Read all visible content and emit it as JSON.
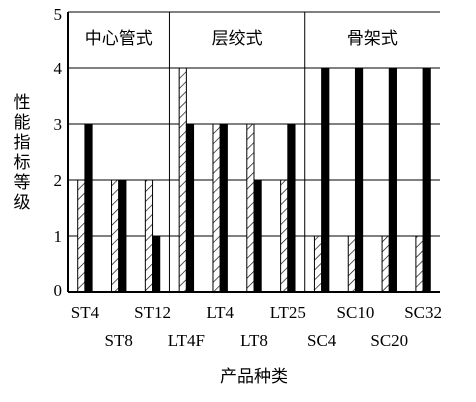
{
  "chart_data": {
    "type": "bar",
    "title": "",
    "xlabel": "产品种类",
    "ylabel": "性能指标等级",
    "ylim": [
      0,
      5
    ],
    "yticks": [
      "0",
      "1",
      "2",
      "3",
      "4",
      "5"
    ],
    "grid": true,
    "groups": [
      {
        "label": "中心管式",
        "categories": [
          "ST4",
          "ST8",
          "ST12"
        ]
      },
      {
        "label": "层绞式",
        "categories": [
          "LT4F",
          "LT4",
          "LT8",
          "LT25"
        ]
      },
      {
        "label": "骨架式",
        "categories": [
          "SC4",
          "SC10",
          "SC20",
          "SC32"
        ]
      }
    ],
    "categories": [
      "ST4",
      "ST8",
      "ST12",
      "LT4F",
      "LT4",
      "LT8",
      "LT25",
      "SC4",
      "SC10",
      "SC20",
      "SC32"
    ],
    "series": [
      {
        "values": [
          2,
          2,
          2,
          4,
          3,
          3,
          2,
          1,
          1,
          1,
          1
        ],
        "pattern": "hatched"
      },
      {
        "values": [
          3,
          2,
          1,
          3,
          3,
          2,
          3,
          4,
          4,
          4,
          4
        ],
        "pattern": "solid"
      }
    ],
    "colors": {
      "solid": "#000000",
      "hatch": "#000000",
      "background": "#ffffff"
    }
  }
}
